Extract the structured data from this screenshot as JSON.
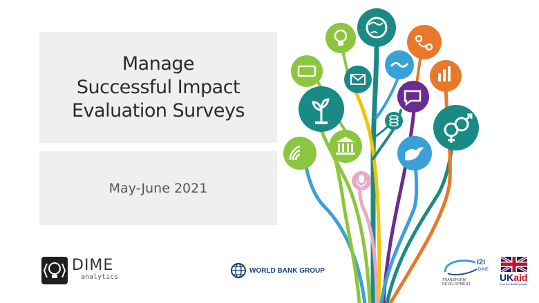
{
  "slide": {
    "title_lines": [
      "Manage",
      "Successful Impact",
      "Evaluation Surveys"
    ],
    "date": "May-June 2021"
  },
  "logos": {
    "dime": {
      "name": "DIME",
      "sub": "analytics"
    },
    "world_bank": {
      "name": "WORLD BANK GROUP"
    },
    "i2i": {
      "name": "i2i",
      "sub": "DIME",
      "tagline": "TRANSFORM DEVELOPMENT"
    },
    "ukaid": {
      "name_uk": "UK",
      "name_aid": "aid",
      "tagline": "from the British people"
    }
  },
  "tree_icons": [
    "globe-icon",
    "lightbulb-icon",
    "location-pin-icon",
    "smartphone-icon",
    "envelope-icon",
    "handshake-icon",
    "bar-chart-icon",
    "chat-icon",
    "plant-icon",
    "coins-icon",
    "gender-icon",
    "wifi-icon",
    "bank-icon",
    "dove-icon",
    "microphone-icon"
  ],
  "colors": {
    "teal": "#1a8a86",
    "green": "#8cc63f",
    "orange": "#e8792a",
    "purple": "#6b2c91",
    "blue": "#3aa0d8",
    "yellow": "#f2c500",
    "pink": "#e7a9c9",
    "title_box": "#efefef"
  }
}
